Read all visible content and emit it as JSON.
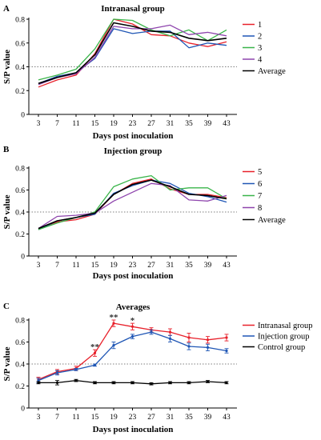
{
  "chart_data": [
    {
      "panel": "A",
      "type": "line",
      "title": "Intranasal group",
      "xlabel": "Days post inoculation",
      "ylabel": "S/P value",
      "x": [
        3,
        7,
        11,
        15,
        19,
        23,
        27,
        31,
        35,
        39,
        43
      ],
      "ylim": [
        0,
        0.8
      ],
      "yticks": [
        0,
        0.2,
        0.4,
        0.6,
        0.8
      ],
      "ytick_labels": [
        "0",
        "0.2",
        "0.4",
        "0.6",
        "0.8"
      ],
      "reference_line": 0.4,
      "legend_position": "right",
      "series": [
        {
          "name": "1",
          "color": "#e8202a",
          "values": [
            0.23,
            0.29,
            0.33,
            0.51,
            0.8,
            0.76,
            0.67,
            0.66,
            0.6,
            0.57,
            0.61
          ]
        },
        {
          "name": "2",
          "color": "#1f56b5",
          "values": [
            0.26,
            0.32,
            0.35,
            0.47,
            0.72,
            0.68,
            0.7,
            0.7,
            0.56,
            0.6,
            0.58
          ]
        },
        {
          "name": "3",
          "color": "#3ab54a",
          "values": [
            0.29,
            0.33,
            0.38,
            0.55,
            0.8,
            0.79,
            0.71,
            0.66,
            0.71,
            0.62,
            0.71
          ]
        },
        {
          "name": "4",
          "color": "#8e44ad",
          "values": [
            0.25,
            0.31,
            0.34,
            0.48,
            0.74,
            0.72,
            0.72,
            0.75,
            0.67,
            0.69,
            0.66
          ]
        },
        {
          "name": "Average",
          "color": "#000000",
          "values": [
            0.26,
            0.31,
            0.35,
            0.5,
            0.77,
            0.74,
            0.7,
            0.69,
            0.64,
            0.62,
            0.64
          ]
        }
      ]
    },
    {
      "panel": "B",
      "type": "line",
      "title": "Injection group",
      "xlabel": "Days post inoculation",
      "ylabel": "S/P value",
      "x": [
        3,
        7,
        11,
        15,
        19,
        23,
        27,
        31,
        35,
        39,
        43
      ],
      "ylim": [
        0,
        0.8
      ],
      "yticks": [
        0,
        0.2,
        0.4,
        0.6,
        0.8
      ],
      "ytick_labels": [
        "0",
        "0.2",
        "0.4",
        "0.6",
        "0.8"
      ],
      "reference_line": 0.4,
      "legend_position": "right",
      "series": [
        {
          "name": "5",
          "color": "#e8202a",
          "values": [
            0.25,
            0.31,
            0.33,
            0.38,
            0.56,
            0.66,
            0.7,
            0.61,
            0.56,
            0.56,
            0.53
          ]
        },
        {
          "name": "6",
          "color": "#1f56b5",
          "values": [
            0.24,
            0.32,
            0.35,
            0.38,
            0.57,
            0.64,
            0.69,
            0.66,
            0.57,
            0.54,
            0.49
          ]
        },
        {
          "name": "7",
          "color": "#3ab54a",
          "values": [
            0.24,
            0.3,
            0.35,
            0.4,
            0.63,
            0.7,
            0.73,
            0.6,
            0.62,
            0.62,
            0.52
          ]
        },
        {
          "name": "8",
          "color": "#8e44ad",
          "values": [
            0.25,
            0.36,
            0.37,
            0.39,
            0.5,
            0.58,
            0.66,
            0.64,
            0.51,
            0.5,
            0.55
          ]
        },
        {
          "name": "Average",
          "color": "#000000",
          "values": [
            0.25,
            0.32,
            0.35,
            0.39,
            0.56,
            0.65,
            0.69,
            0.63,
            0.56,
            0.55,
            0.52
          ]
        }
      ]
    },
    {
      "panel": "C",
      "type": "line",
      "title": "Averages",
      "xlabel": "Days post inoculation",
      "ylabel": "S/P value",
      "x": [
        3,
        7,
        11,
        15,
        19,
        23,
        27,
        31,
        35,
        39,
        43
      ],
      "ylim": [
        0,
        0.8
      ],
      "yticks": [
        0,
        0.2,
        0.4,
        0.6,
        0.8
      ],
      "ytick_labels": [
        "0",
        "0.2",
        "0.4",
        "0.6",
        "0.8"
      ],
      "reference_line": 0.4,
      "legend_position": "right",
      "series": [
        {
          "name": "Intranasal group",
          "color": "#e8202a",
          "values": [
            0.26,
            0.33,
            0.36,
            0.5,
            0.77,
            0.74,
            0.71,
            0.69,
            0.64,
            0.62,
            0.64
          ],
          "errors": [
            0.02,
            0.02,
            0.02,
            0.03,
            0.03,
            0.03,
            0.02,
            0.03,
            0.04,
            0.03,
            0.03
          ]
        },
        {
          "name": "Injection group",
          "color": "#1f56b5",
          "values": [
            0.25,
            0.32,
            0.35,
            0.39,
            0.57,
            0.65,
            0.69,
            0.63,
            0.56,
            0.55,
            0.52
          ],
          "errors": [
            0.02,
            0.02,
            0.01,
            0.01,
            0.03,
            0.02,
            0.02,
            0.03,
            0.03,
            0.03,
            0.02
          ]
        },
        {
          "name": "Control group",
          "color": "#000000",
          "values": [
            0.23,
            0.23,
            0.25,
            0.23,
            0.23,
            0.23,
            0.22,
            0.23,
            0.23,
            0.24,
            0.23
          ],
          "errors": [
            0.01,
            0.02,
            0.01,
            0.01,
            0.01,
            0.01,
            0.01,
            0.01,
            0.01,
            0.01,
            0.01
          ]
        }
      ],
      "annotations": [
        {
          "text": "**",
          "x": 15,
          "y": 0.53
        },
        {
          "text": "**",
          "x": 19,
          "y": 0.8
        },
        {
          "text": "*",
          "x": 23,
          "y": 0.77
        }
      ]
    }
  ]
}
